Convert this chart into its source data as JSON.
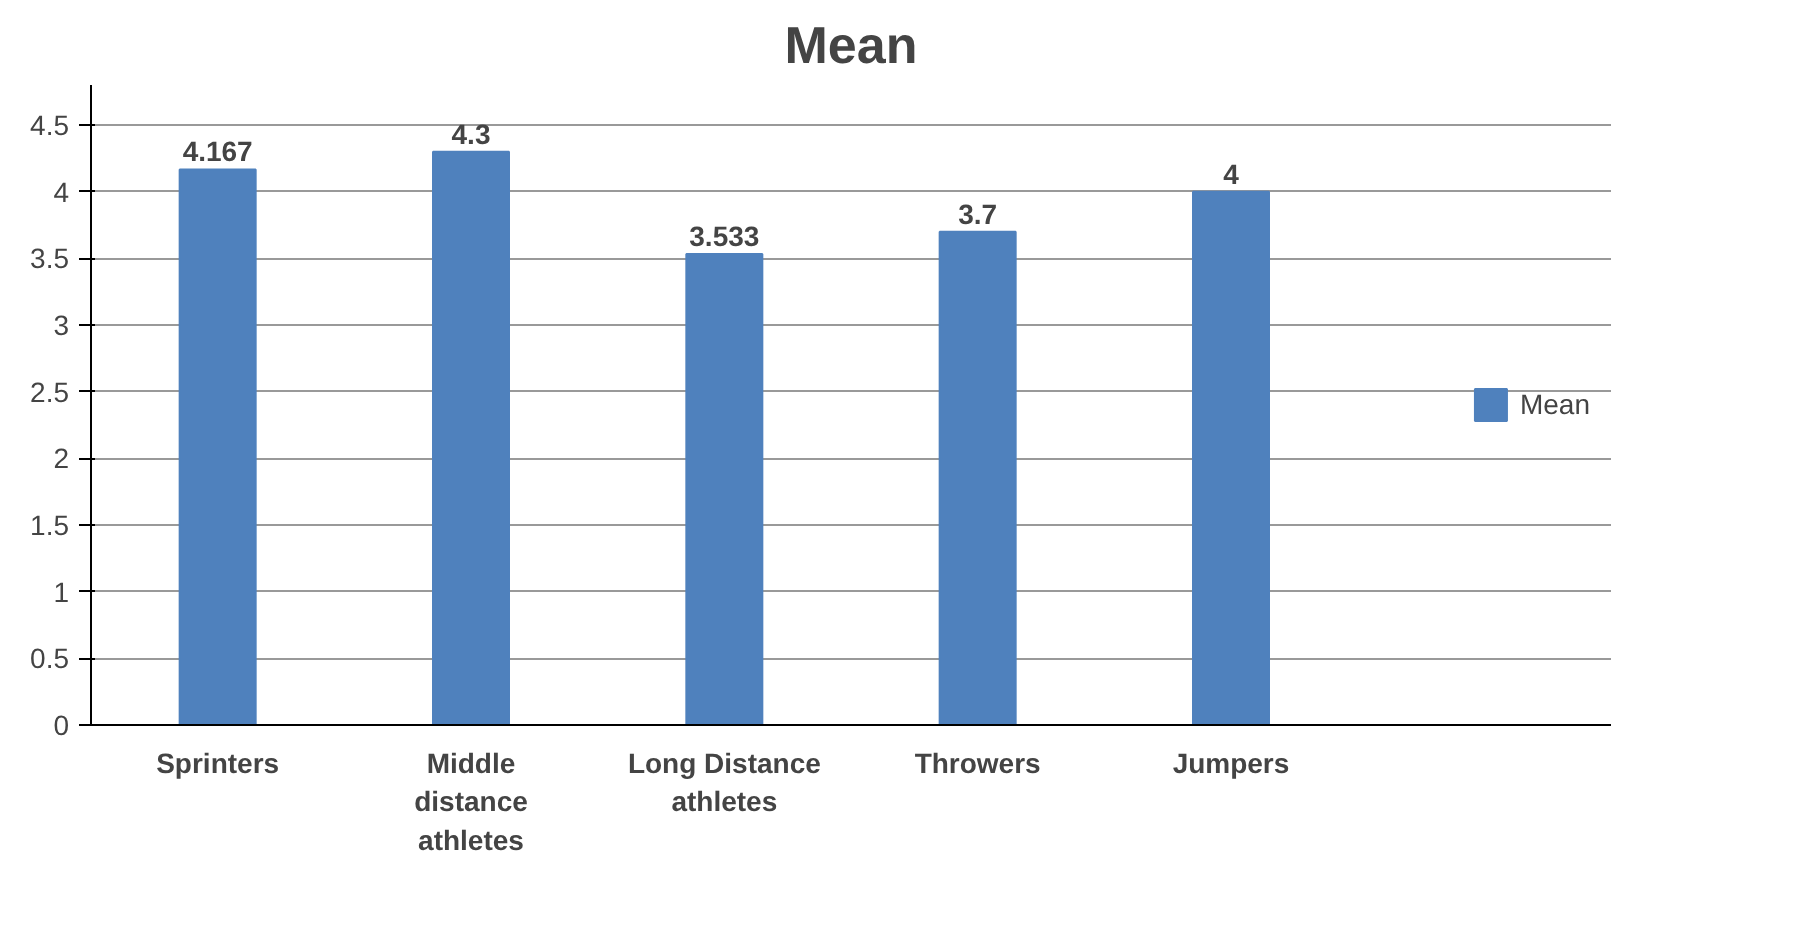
{
  "chart_data": {
    "type": "bar",
    "title": "Mean",
    "categories": [
      "Sprinters",
      "Middle distance athletes",
      "Long Distance athletes",
      "Throwers",
      "Jumpers"
    ],
    "series": [
      {
        "name": "Mean",
        "color": "#4f81bd",
        "values": [
          4.167,
          4.3,
          3.533,
          3.7,
          4
        ]
      }
    ],
    "ylim": [
      0,
      4.8
    ],
    "yticks": [
      0,
      0.5,
      1,
      1.5,
      2,
      2.5,
      3,
      3.5,
      4,
      4.5
    ],
    "grid": "y",
    "legend": "right",
    "data_labels": true
  }
}
